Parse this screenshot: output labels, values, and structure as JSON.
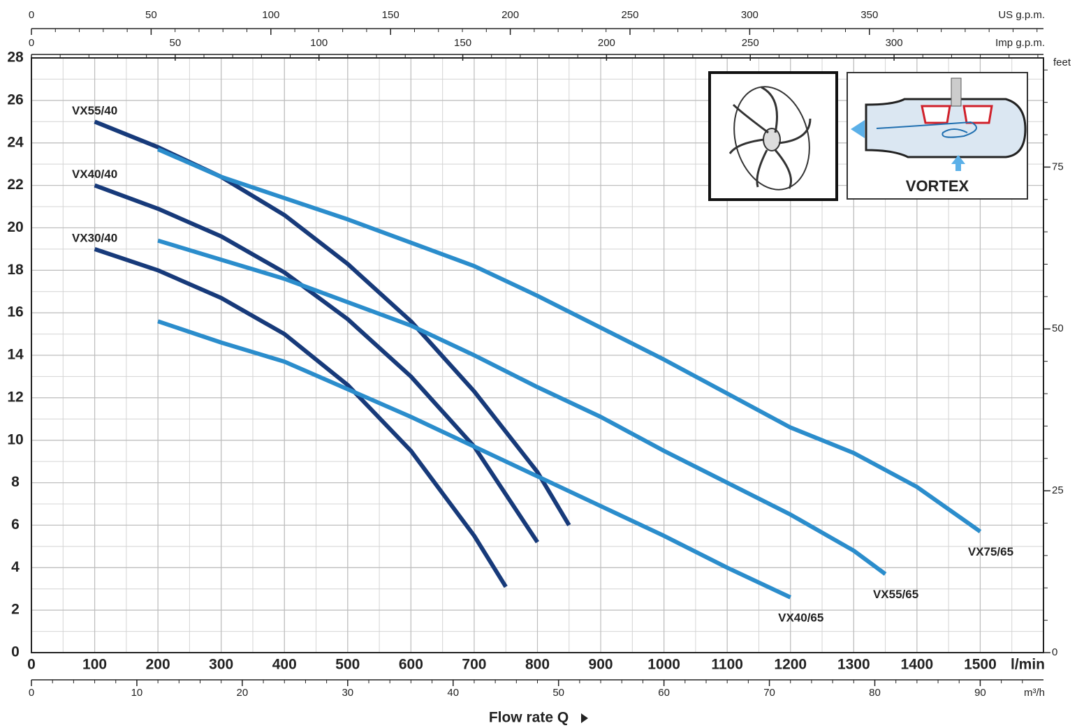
{
  "chart_data": {
    "type": "line",
    "x_label": "Flow rate Q",
    "x_unit": "l/min",
    "xlim": [
      0,
      1600
    ],
    "xticks": [
      0,
      100,
      200,
      300,
      400,
      500,
      600,
      700,
      800,
      900,
      1000,
      1100,
      1200,
      1300,
      1400,
      1500
    ],
    "ylim": [
      0,
      28
    ],
    "yticks": [
      0,
      2,
      4,
      6,
      8,
      10,
      12,
      14,
      16,
      18,
      20,
      22,
      24,
      26,
      28
    ],
    "y2_unit": "feet",
    "y2lim": [
      0,
      91.86
    ],
    "y2ticks": [
      0,
      25,
      50,
      75
    ],
    "grid": true,
    "top_axes": [
      {
        "label": "US g.p.m.",
        "lim": [
          0,
          422.7
        ],
        "ticks": [
          0,
          50,
          100,
          150,
          200,
          250,
          300,
          350
        ]
      },
      {
        "label": "Imp g.p.m.",
        "lim": [
          0,
          351.96
        ],
        "ticks": [
          0,
          50,
          100,
          150,
          200,
          250,
          300
        ]
      }
    ],
    "bottom_axis2": {
      "label": "m³/h",
      "lim": [
        0,
        96
      ],
      "ticks": [
        0,
        10,
        20,
        30,
        40,
        50,
        60,
        70,
        80,
        90
      ]
    },
    "annotations": [
      "VORTEX"
    ],
    "series": [
      {
        "name": "VX55/40",
        "color": "#173a7a",
        "label_position": "start",
        "x": [
          100,
          200,
          300,
          400,
          500,
          600,
          700,
          800,
          850
        ],
        "values": [
          25,
          23.8,
          22.4,
          20.6,
          18.3,
          15.6,
          12.3,
          8.5,
          6
        ]
      },
      {
        "name": "VX40/40",
        "color": "#173a7a",
        "label_position": "start",
        "x": [
          100,
          200,
          300,
          400,
          500,
          600,
          700,
          800
        ],
        "values": [
          22,
          20.9,
          19.6,
          17.9,
          15.7,
          13,
          9.7,
          5.2
        ]
      },
      {
        "name": "VX30/40",
        "color": "#173a7a",
        "label_position": "start",
        "x": [
          100,
          200,
          300,
          400,
          500,
          600,
          700,
          750
        ],
        "values": [
          19,
          18,
          16.7,
          15,
          12.6,
          9.5,
          5.5,
          3.1
        ]
      },
      {
        "name": "VX75/65",
        "color": "#2b8dcc",
        "label_position": "end",
        "x": [
          200,
          300,
          400,
          500,
          600,
          700,
          800,
          900,
          1000,
          1100,
          1200,
          1300,
          1400,
          1500
        ],
        "values": [
          23.7,
          22.4,
          21.4,
          20.4,
          19.3,
          18.2,
          16.8,
          15.3,
          13.8,
          12.2,
          10.6,
          9.4,
          7.8,
          5.7
        ]
      },
      {
        "name": "VX55/65",
        "color": "#2b8dcc",
        "label_position": "end",
        "x": [
          200,
          300,
          400,
          500,
          600,
          700,
          800,
          900,
          1000,
          1100,
          1200,
          1300,
          1350
        ],
        "values": [
          19.4,
          18.5,
          17.6,
          16.5,
          15.4,
          14,
          12.5,
          11.1,
          9.5,
          8,
          6.5,
          4.8,
          3.7
        ]
      },
      {
        "name": "VX40/65",
        "color": "#2b8dcc",
        "label_position": "end",
        "x": [
          200,
          300,
          400,
          500,
          600,
          700,
          800,
          900,
          1000,
          1100,
          1200
        ],
        "values": [
          15.6,
          14.6,
          13.7,
          12.4,
          11.1,
          9.7,
          8.3,
          6.9,
          5.5,
          4,
          2.6
        ]
      }
    ]
  }
}
